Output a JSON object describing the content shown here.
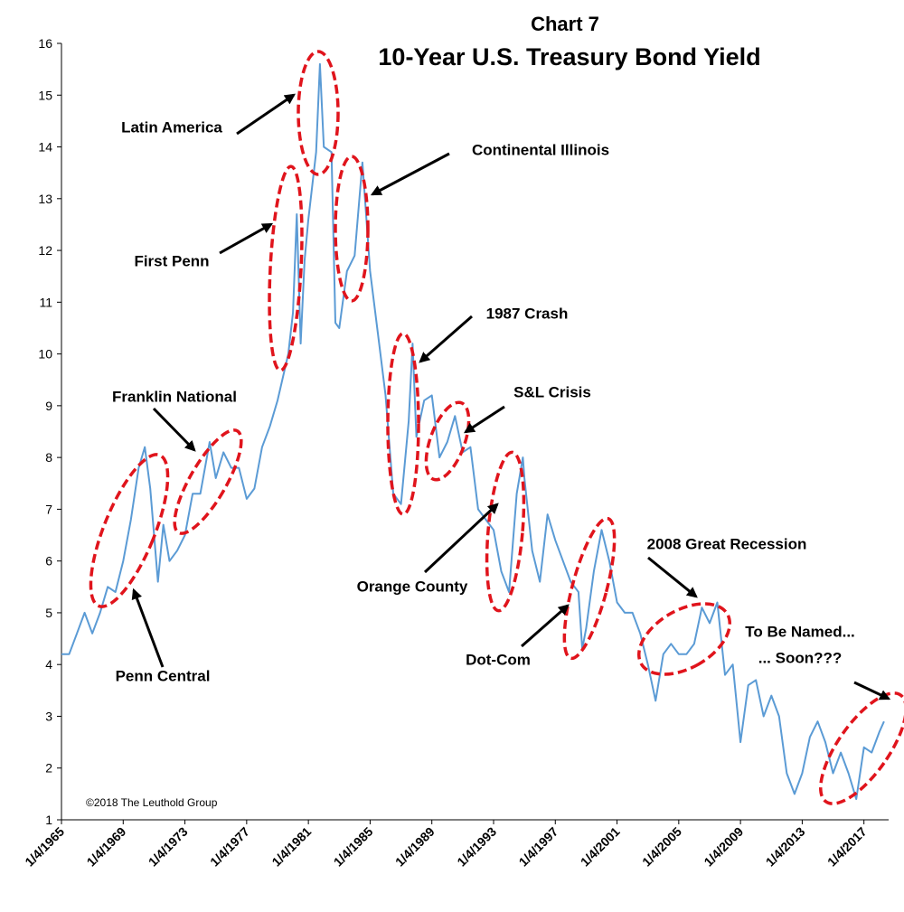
{
  "chart_data": {
    "type": "line",
    "chart_label": "Chart 7",
    "title": "10-Year U.S. Treasury Bond Yield",
    "source": "©2018 The Leuthold Group",
    "color": "#5b9bd5",
    "xlim": [
      1965,
      2018.6
    ],
    "ylim": [
      1,
      16
    ],
    "yticks": [
      1,
      2,
      3,
      4,
      5,
      6,
      7,
      8,
      9,
      10,
      11,
      12,
      13,
      14,
      15,
      16
    ],
    "xticks": [
      {
        "value": 1965,
        "label": "1/4/1965"
      },
      {
        "value": 1969,
        "label": "1/4/1969"
      },
      {
        "value": 1973,
        "label": "1/4/1973"
      },
      {
        "value": 1977,
        "label": "1/4/1977"
      },
      {
        "value": 1981,
        "label": "1/4/1981"
      },
      {
        "value": 1985,
        "label": "1/4/1985"
      },
      {
        "value": 1989,
        "label": "1/4/1989"
      },
      {
        "value": 1993,
        "label": "1/4/1993"
      },
      {
        "value": 1997,
        "label": "1/4/1997"
      },
      {
        "value": 2001,
        "label": "1/4/2001"
      },
      {
        "value": 2005,
        "label": "1/4/2005"
      },
      {
        "value": 2009,
        "label": "1/4/2009"
      },
      {
        "value": 2013,
        "label": "1/4/2013"
      },
      {
        "value": 2017,
        "label": "1/4/2017"
      }
    ],
    "x": [
      1965,
      1965.5,
      1966,
      1966.5,
      1967,
      1967.5,
      1968,
      1968.5,
      1969,
      1969.5,
      1970,
      1970.4,
      1970.75,
      1971.25,
      1971.6,
      1972,
      1972.5,
      1973,
      1973.5,
      1974,
      1974.6,
      1975,
      1975.5,
      1976,
      1976.5,
      1977,
      1977.5,
      1978,
      1978.5,
      1979,
      1979.7,
      1980.0,
      1980.25,
      1980.5,
      1980.75,
      1981,
      1981.5,
      1981.75,
      1982,
      1982.5,
      1982.75,
      1983,
      1983.5,
      1984,
      1984.5,
      1985,
      1985.5,
      1986,
      1986.5,
      1987,
      1987.5,
      1987.75,
      1988,
      1988.5,
      1989,
      1989.5,
      1990,
      1990.5,
      1991,
      1991.5,
      1992,
      1992.5,
      1993,
      1993.5,
      1994,
      1994.5,
      1994.9,
      1995,
      1995.5,
      1996,
      1996.5,
      1997,
      1997.5,
      1998,
      1998.5,
      1998.75,
      1999,
      1999.5,
      2000,
      2000.5,
      2001,
      2001.5,
      2002,
      2002.5,
      2003,
      2003.5,
      2004,
      2004.5,
      2005,
      2005.5,
      2006,
      2006.5,
      2007,
      2007.5,
      2008,
      2008.5,
      2009,
      2009.5,
      2010,
      2010.5,
      2011,
      2011.5,
      2012,
      2012.5,
      2013,
      2013.5,
      2014,
      2014.5,
      2015,
      2015.5,
      2016,
      2016.5,
      2017,
      2017.5,
      2018,
      2018.3
    ],
    "values": [
      4.2,
      4.2,
      4.6,
      5.0,
      4.6,
      5.0,
      5.5,
      5.4,
      6.0,
      6.8,
      7.8,
      8.2,
      7.4,
      5.6,
      6.7,
      6.0,
      6.2,
      6.5,
      7.3,
      7.3,
      8.3,
      7.6,
      8.1,
      7.8,
      7.8,
      7.2,
      7.4,
      8.2,
      8.6,
      9.1,
      10.0,
      10.8,
      12.7,
      10.2,
      11.8,
      12.6,
      13.9,
      15.6,
      14.0,
      13.9,
      10.6,
      10.5,
      11.6,
      11.9,
      13.7,
      11.6,
      10.4,
      9.2,
      7.3,
      7.1,
      8.7,
      10.2,
      8.4,
      9.1,
      9.2,
      8.0,
      8.3,
      8.8,
      8.1,
      8.2,
      7.0,
      6.8,
      6.6,
      5.8,
      5.4,
      7.3,
      8.0,
      7.6,
      6.2,
      5.6,
      6.9,
      6.4,
      6.0,
      5.6,
      5.4,
      4.3,
      4.7,
      5.8,
      6.6,
      6.0,
      5.2,
      5.0,
      5.0,
      4.6,
      4.0,
      3.3,
      4.2,
      4.4,
      4.2,
      4.2,
      4.4,
      5.1,
      4.8,
      5.2,
      3.8,
      4.0,
      2.5,
      3.6,
      3.7,
      3.0,
      3.4,
      3.0,
      1.9,
      1.5,
      1.9,
      2.6,
      2.9,
      2.5,
      1.9,
      2.3,
      1.9,
      1.4,
      2.4,
      2.3,
      2.7,
      2.9
    ],
    "annotations": [
      "Latin America",
      "Continental Illinois",
      "First Penn",
      "1987 Crash",
      "Franklin National",
      "S&L Crisis",
      "Orange County",
      "2008 Great Recession",
      "To Be Named...",
      "... Soon???",
      "Dot-Com",
      "Penn Central"
    ]
  }
}
